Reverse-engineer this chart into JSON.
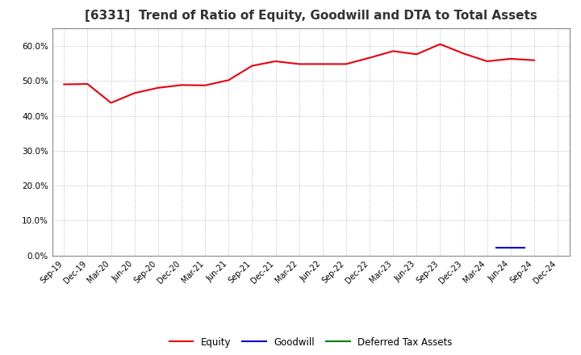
{
  "title": "[6331]  Trend of Ratio of Equity, Goodwill and DTA to Total Assets",
  "x_labels": [
    "Sep-19",
    "Dec-19",
    "Mar-20",
    "Jun-20",
    "Sep-20",
    "Dec-20",
    "Mar-21",
    "Jun-21",
    "Sep-21",
    "Dec-21",
    "Mar-22",
    "Jun-22",
    "Sep-22",
    "Dec-22",
    "Mar-23",
    "Jun-23",
    "Sep-23",
    "Dec-23",
    "Mar-24",
    "Jun-24",
    "Sep-24",
    "Dec-24"
  ],
  "equity": [
    0.49,
    0.491,
    0.437,
    0.465,
    0.48,
    0.488,
    0.487,
    0.502,
    0.543,
    0.556,
    0.548,
    0.548,
    0.548,
    0.566,
    0.585,
    0.576,
    0.605,
    0.578,
    0.556,
    0.563,
    0.559,
    null
  ],
  "goodwill": [
    null,
    null,
    null,
    null,
    null,
    null,
    null,
    null,
    null,
    null,
    null,
    null,
    null,
    null,
    null,
    null,
    null,
    null,
    null,
    0.022,
    null,
    null
  ],
  "deferred_tax_assets": [
    null,
    null,
    null,
    null,
    null,
    null,
    null,
    null,
    null,
    null,
    null,
    null,
    null,
    null,
    null,
    null,
    null,
    null,
    null,
    null,
    null,
    null
  ],
  "equity_color": "#e8000d",
  "goodwill_color": "#0000cd",
  "dta_color": "#008000",
  "background_color": "#ffffff",
  "grid_color": "#aaaaaa",
  "ylim": [
    0.0,
    0.65
  ],
  "yticks": [
    0.0,
    0.1,
    0.2,
    0.3,
    0.4,
    0.5,
    0.6
  ],
  "title_fontsize": 11,
  "tick_fontsize": 7,
  "legend_labels": [
    "Equity",
    "Goodwill",
    "Deferred Tax Assets"
  ]
}
